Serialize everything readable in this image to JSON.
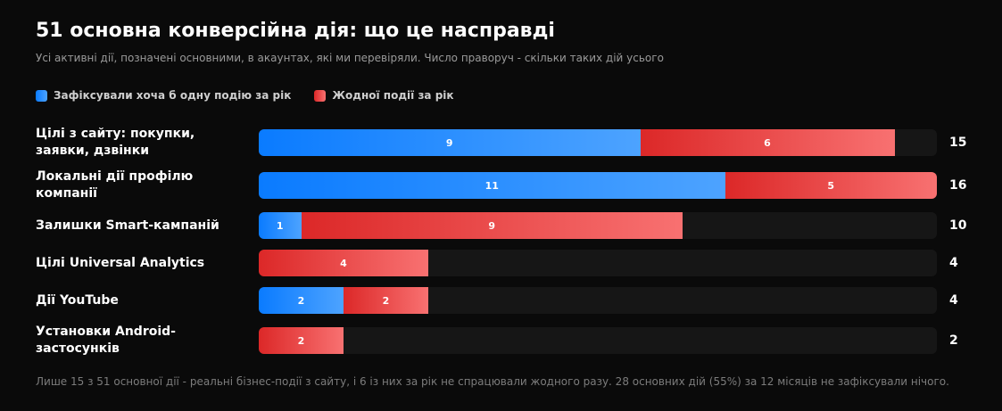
{
  "title": "51 основна конверсійна дія: що це насправді",
  "subtitle": "Усі активні дії, позначені основними, в акаунтах, які ми перевіряли. Число праворуч - скільки таких дій усього",
  "legend": {
    "fired": "Зафіксували хоча б одну подію за рік",
    "not_fired": "Жодної події за рік"
  },
  "colors": {
    "fired": "#0a7bff",
    "not_fired": "#dc2828",
    "track": "#161616",
    "background": "#0a0a0a"
  },
  "footnote": "Лише 15 з 51 основної дії - реальні бізнес-події з сайту, і 6 із них за рік не спрацювали жодного разу. 28 основних дій (55%) за 12 місяців не зафіксували нічого.",
  "chart_data": {
    "type": "bar",
    "orientation": "horizontal",
    "stacked": true,
    "title": "51 основна конверсійна дія: що це насправді",
    "categories": [
      "Цілі з сайту: покупки, заявки, дзвінки",
      "Локальні дії профілю компанії",
      "Залишки Smart-кампаній",
      "Цілі Universal Analytics",
      "Дії YouTube",
      "Установки Android-застосунків"
    ],
    "series": [
      {
        "name": "Зафіксували хоча б одну подію за рік",
        "values": [
          9,
          11,
          1,
          0,
          2,
          0
        ]
      },
      {
        "name": "Жодної події за рік",
        "values": [
          6,
          5,
          9,
          4,
          2,
          2
        ]
      }
    ],
    "totals": [
      15,
      16,
      10,
      4,
      4,
      2
    ],
    "xlim": [
      0,
      16
    ],
    "legend_position": "top-left",
    "grid": false
  }
}
